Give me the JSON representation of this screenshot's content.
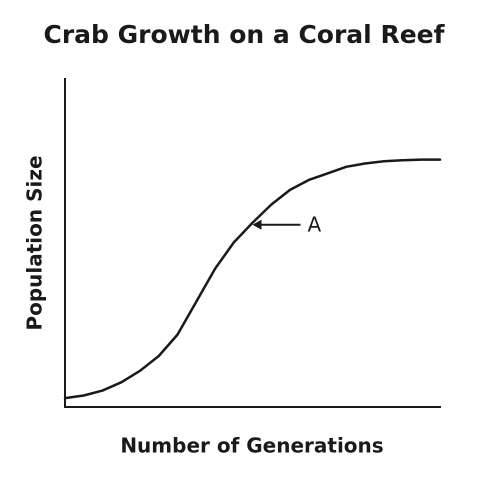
{
  "chart_data": {
    "type": "line",
    "title": "Crab Growth on a Coral Reef",
    "x_label": "Number of Generations",
    "y_label": "Population Size",
    "x": [
      0,
      0.5,
      1,
      1.5,
      2,
      2.5,
      3,
      3.5,
      4,
      4.5,
      5,
      5.5,
      6,
      6.5,
      7,
      7.5,
      8,
      8.5,
      9,
      9.5,
      10
    ],
    "values": [
      0.27,
      0.35,
      0.5,
      0.75,
      1.1,
      1.55,
      2.2,
      3.2,
      4.2,
      5.0,
      5.6,
      6.15,
      6.6,
      6.9,
      7.1,
      7.3,
      7.4,
      7.47,
      7.5,
      7.52,
      7.52
    ],
    "color": "#1a1a1a",
    "xlim": [
      0,
      10
    ],
    "ylim": [
      0,
      10
    ],
    "annotations": [
      {
        "text": "A",
        "x": 5,
        "y": 5.6
      }
    ]
  }
}
